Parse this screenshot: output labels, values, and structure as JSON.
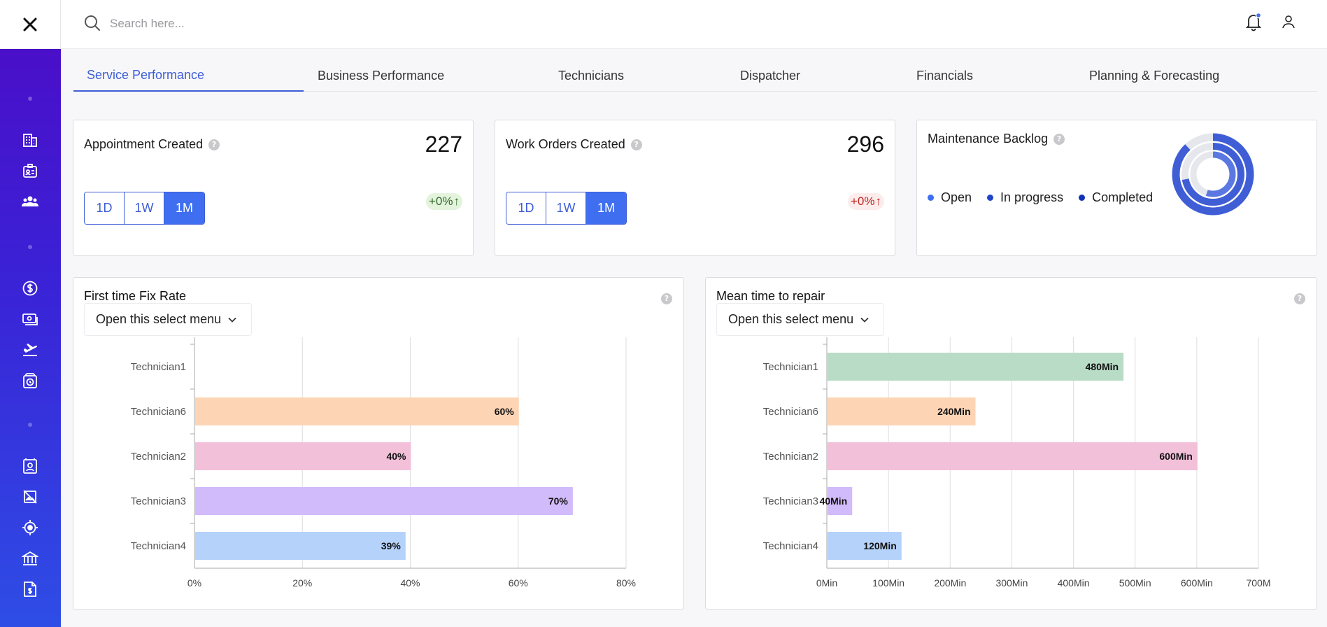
{
  "colors": {
    "accent": "#3f5ed6",
    "sidebar_top": "#4a0fc9",
    "sidebar_bottom": "#2e4de6",
    "delta_up": "#2f6b2a",
    "delta_down": "#c0241f",
    "legend_open": "#3f6ff0",
    "legend_inprogress": "#1f45c7",
    "legend_completed": "#0f33b8"
  },
  "sidebar": {
    "close_icon": "close-icon",
    "icons": [
      "building-icon",
      "id-badge-icon",
      "users-icon",
      "dollar-circle-icon",
      "cash-icon",
      "airplane-icon",
      "box-clock-icon",
      "contact-card-icon",
      "image-off-icon",
      "target-icon",
      "bank-icon",
      "invoice-icon"
    ]
  },
  "search": {
    "placeholder": "Search here..."
  },
  "tabs": [
    {
      "label": "Service Performance",
      "active": true
    },
    {
      "label": "Business Performance",
      "active": false
    },
    {
      "label": "Technicians",
      "active": false
    },
    {
      "label": "Dispatcher",
      "active": false
    },
    {
      "label": "Financials",
      "active": false
    },
    {
      "label": "Planning & Forecasting",
      "active": false
    }
  ],
  "kpis": [
    {
      "title": "Appointment Created",
      "value": "227",
      "periods": [
        "1D",
        "1W",
        "1M"
      ],
      "active_period": "1M",
      "delta": "+0%",
      "delta_arrow": "↑",
      "delta_tone": "up"
    },
    {
      "title": "Work Orders Created",
      "value": "296",
      "periods": [
        "1D",
        "1W",
        "1M"
      ],
      "active_period": "1M",
      "delta": "+0%",
      "delta_arrow": "↑",
      "delta_tone": "down"
    }
  ],
  "backlog": {
    "title": "Maintenance Backlog",
    "legend": [
      "Open",
      "In progress",
      "Completed"
    ],
    "rings": [
      {
        "name": "Open",
        "fraction": 0.88,
        "color": "#3f5ed6"
      },
      {
        "name": "In progress",
        "fraction": 0.72,
        "color": "#3f5ed6"
      },
      {
        "name": "Completed",
        "fraction": 0.55,
        "color": "#5b78e2"
      }
    ]
  },
  "charts": [
    {
      "title": "First time Fix Rate",
      "select_label": "Open this select menu",
      "chart_data": {
        "type": "bar",
        "orientation": "horizontal",
        "categories": [
          "Technician1",
          "Technician6",
          "Technician2",
          "Technician3",
          "Technician4"
        ],
        "values": [
          0,
          60,
          40,
          70,
          39
        ],
        "value_labels": [
          "",
          "60%",
          "40%",
          "70%",
          "39%"
        ],
        "colors": [
          "#b9dcc7",
          "#fdd5b5",
          "#f3c0da",
          "#d2bbfa",
          "#b5d2fa"
        ],
        "xlim": [
          0,
          80
        ],
        "xticks": [
          "0%",
          "20%",
          "40%",
          "60%",
          "80%"
        ],
        "grid": true
      }
    },
    {
      "title": "Mean time to repair",
      "select_label": "Open this select menu",
      "chart_data": {
        "type": "bar",
        "orientation": "horizontal",
        "categories": [
          "Technician1",
          "Technician6",
          "Technician2",
          "Technician3",
          "Technician4"
        ],
        "values": [
          480,
          240,
          600,
          40,
          120
        ],
        "value_labels": [
          "480Min",
          "240Min",
          "600Min",
          "40Min",
          "120Min"
        ],
        "colors": [
          "#b9dcc7",
          "#fdd5b5",
          "#f3c0da",
          "#d2bbfa",
          "#b5d2fa"
        ],
        "xlim": [
          0,
          700
        ],
        "xticks": [
          "0Min",
          "100Min",
          "200Min",
          "300Min",
          "400Min",
          "500Min",
          "600Min",
          "700M"
        ],
        "grid": true
      }
    }
  ]
}
